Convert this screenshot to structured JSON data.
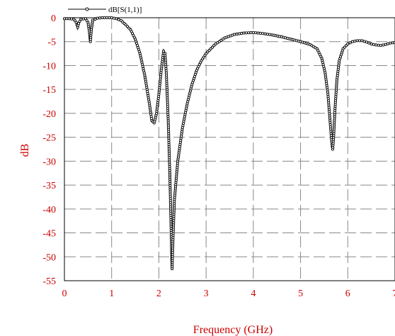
{
  "chart_data": {
    "type": "line",
    "xlabel": "Frequency (GHz)",
    "ylabel": "dB",
    "xlim": [
      0,
      7
    ],
    "ylim": [
      -55,
      0
    ],
    "x_ticks": [
      0,
      1,
      2,
      3,
      4,
      5,
      6,
      7
    ],
    "y_ticks": [
      0,
      -5,
      -10,
      -15,
      -20,
      -25,
      -30,
      -35,
      -40,
      -45,
      -50,
      -55
    ],
    "grid": true,
    "grid_style": "dashed",
    "legend_position": "top-left",
    "colors": {
      "tick_text": "#cc0000",
      "series": "#000000",
      "grid": "#888888"
    },
    "series": [
      {
        "name": "dB[S(1,1)]",
        "marker": "circle",
        "points": [
          [
            0.0,
            -0.2
          ],
          [
            0.1,
            -0.2
          ],
          [
            0.2,
            -0.3
          ],
          [
            0.25,
            -1.0
          ],
          [
            0.28,
            -2.0
          ],
          [
            0.3,
            -1.2
          ],
          [
            0.35,
            -0.3
          ],
          [
            0.45,
            -0.2
          ],
          [
            0.5,
            -1.0
          ],
          [
            0.53,
            -3.0
          ],
          [
            0.55,
            -5.0
          ],
          [
            0.57,
            -2.5
          ],
          [
            0.6,
            -0.5
          ],
          [
            0.7,
            -0.1
          ],
          [
            0.8,
            0.0
          ],
          [
            0.9,
            0.0
          ],
          [
            1.0,
            0.0
          ],
          [
            1.1,
            -0.2
          ],
          [
            1.2,
            -0.6
          ],
          [
            1.3,
            -1.5
          ],
          [
            1.4,
            -2.5
          ],
          [
            1.5,
            -4.5
          ],
          [
            1.6,
            -7.5
          ],
          [
            1.7,
            -12.0
          ],
          [
            1.8,
            -18.0
          ],
          [
            1.85,
            -21.5
          ],
          [
            1.9,
            -22.0
          ],
          [
            1.95,
            -20.0
          ],
          [
            2.0,
            -16.0
          ],
          [
            2.05,
            -11.0
          ],
          [
            2.1,
            -7.0
          ],
          [
            2.13,
            -7.5
          ],
          [
            2.16,
            -12.0
          ],
          [
            2.2,
            -22.0
          ],
          [
            2.23,
            -32.0
          ],
          [
            2.25,
            -40.0
          ],
          [
            2.27,
            -49.0
          ],
          [
            2.28,
            -52.5
          ],
          [
            2.3,
            -46.0
          ],
          [
            2.33,
            -38.0
          ],
          [
            2.4,
            -30.0
          ],
          [
            2.5,
            -23.0
          ],
          [
            2.6,
            -18.0
          ],
          [
            2.7,
            -14.0
          ],
          [
            2.8,
            -11.0
          ],
          [
            2.9,
            -9.0
          ],
          [
            3.0,
            -7.5
          ],
          [
            3.2,
            -5.5
          ],
          [
            3.4,
            -4.2
          ],
          [
            3.6,
            -3.5
          ],
          [
            3.8,
            -3.2
          ],
          [
            4.0,
            -3.1
          ],
          [
            4.2,
            -3.3
          ],
          [
            4.4,
            -3.6
          ],
          [
            4.6,
            -4.0
          ],
          [
            4.8,
            -4.5
          ],
          [
            5.0,
            -5.0
          ],
          [
            5.2,
            -5.6
          ],
          [
            5.35,
            -6.5
          ],
          [
            5.45,
            -8.5
          ],
          [
            5.52,
            -11.5
          ],
          [
            5.58,
            -16.0
          ],
          [
            5.62,
            -21.0
          ],
          [
            5.66,
            -26.0
          ],
          [
            5.68,
            -27.5
          ],
          [
            5.7,
            -25.0
          ],
          [
            5.73,
            -19.0
          ],
          [
            5.77,
            -13.0
          ],
          [
            5.82,
            -9.0
          ],
          [
            5.9,
            -6.5
          ],
          [
            6.0,
            -5.5
          ],
          [
            6.1,
            -5.0
          ],
          [
            6.2,
            -4.8
          ],
          [
            6.3,
            -4.8
          ],
          [
            6.4,
            -5.1
          ],
          [
            6.5,
            -5.5
          ],
          [
            6.6,
            -5.7
          ],
          [
            6.7,
            -5.8
          ],
          [
            6.8,
            -5.6
          ],
          [
            6.9,
            -5.3
          ],
          [
            7.0,
            -5.2
          ]
        ]
      }
    ]
  }
}
